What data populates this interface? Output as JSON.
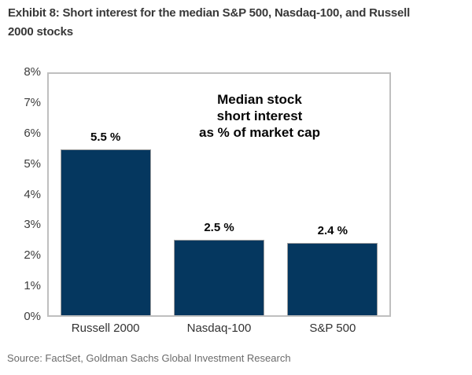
{
  "page": {
    "title": "Exhibit 8: Short interest for the median S&P 500, Nasdaq-100, and Russell\n2000 stocks",
    "source": "Source: FactSet, Goldman Sachs Global Investment Research"
  },
  "colors": {
    "bar_fill": "#05375f",
    "bar_border": "#9e9e9e",
    "plot_border": "#bfbfbf",
    "title_text": "#383838",
    "axis_text": "#3d3d3d",
    "label_text": "#050505",
    "source_text": "#6b6b6b",
    "background": "#ffffff"
  },
  "chart_data": {
    "type": "bar",
    "title": "Exhibit 8: Short interest for the median S&P 500, Nasdaq-100, and Russell 2000 stocks",
    "categories": [
      "Russell 2000",
      "Nasdaq-100",
      "S&P 500"
    ],
    "values": [
      5.5,
      2.5,
      2.4
    ],
    "value_labels": [
      "5.5 %",
      "2.5 %",
      "2.4 %"
    ],
    "annotation": "Median stock\nshort interest\nas % of market cap",
    "xlabel": "",
    "ylabel": "",
    "ylim": [
      0,
      8
    ],
    "ytick_labels": [
      "0%",
      "1%",
      "2%",
      "3%",
      "4%",
      "5%",
      "6%",
      "7%",
      "8%"
    ],
    "grid": false,
    "legend": "none",
    "bar_color": "#05375f"
  }
}
